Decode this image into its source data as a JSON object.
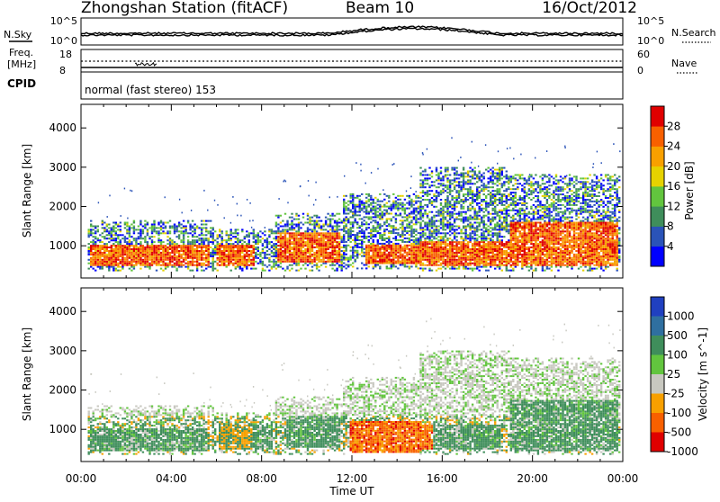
{
  "header": {
    "station": "Zhongshan Station (fitACF)",
    "beam": "Beam 10",
    "date": "16/Oct/2012"
  },
  "noise_panel": {
    "left_label": "N.Sky",
    "left_ticks": [
      "10^5",
      "10^0"
    ],
    "right_label": "N.Search",
    "right_ticks": [
      "10^5",
      "10^0"
    ]
  },
  "freq_panel": {
    "left_label_line1": "Freq.",
    "left_label_line2": "[MHz]",
    "left_ticks": [
      "18",
      "8"
    ],
    "right_label": "Nave",
    "right_ticks": [
      "60",
      "0"
    ]
  },
  "cpid": {
    "label": "CPID",
    "mode_text": "normal (fast stereo) 153"
  },
  "chart_data": [
    {
      "type": "heatmap",
      "name": "Power",
      "ylabel": "Slant Range [km]",
      "xlabel": "",
      "x_ticks": [
        "00:00",
        "04:00",
        "08:00",
        "12:00",
        "16:00",
        "20:00",
        "00:00"
      ],
      "xlim_hours": [
        0,
        24
      ],
      "y_ticks": [
        1000,
        2000,
        3000,
        4000
      ],
      "ylim": [
        180,
        4600
      ],
      "colorbar": {
        "label": "Power [dB]",
        "ticks": [
          "4",
          "8",
          "12",
          "16",
          "20",
          "24",
          "28"
        ],
        "colors": [
          "#0000ff",
          "#2a53b8",
          "#3f8e5b",
          "#62c53e",
          "#e6d200",
          "#f8a000",
          "#f86000",
          "#e00000"
        ]
      },
      "regions": [
        {
          "t0": 0.3,
          "t1": 5.8,
          "r0": 350,
          "r1": 1650,
          "core": [
            0.4,
            5.6,
            450,
            1000
          ]
        },
        {
          "t0": 5.8,
          "t1": 8.6,
          "r0": 350,
          "r1": 1400,
          "core": [
            5.9,
            7.6,
            450,
            1000
          ]
        },
        {
          "t0": 8.6,
          "t1": 11.6,
          "r0": 350,
          "r1": 1800,
          "core": [
            8.7,
            11.4,
            550,
            1300
          ]
        },
        {
          "t0": 11.6,
          "t1": 15.0,
          "r0": 400,
          "r1": 2300,
          "core": [
            12.5,
            15.0,
            500,
            1000
          ]
        },
        {
          "t0": 15.0,
          "t1": 19.0,
          "r0": 350,
          "r1": 3000,
          "core": [
            15.0,
            19.0,
            450,
            1100
          ]
        },
        {
          "t0": 19.0,
          "t1": 23.9,
          "r0": 350,
          "r1": 2800,
          "core": [
            19.0,
            23.8,
            450,
            1600
          ]
        }
      ]
    },
    {
      "type": "heatmap",
      "name": "Velocity",
      "ylabel": "Slant Range [km]",
      "xlabel": "Time UT",
      "x_ticks": [
        "00:00",
        "04:00",
        "08:00",
        "12:00",
        "16:00",
        "20:00",
        "00:00"
      ],
      "xlim_hours": [
        0,
        24
      ],
      "y_ticks": [
        1000,
        2000,
        3000,
        4000
      ],
      "ylim": [
        180,
        4600
      ],
      "colorbar": {
        "label": "Velocity [m s^-1]",
        "ticks": [
          "1000",
          "500",
          "100",
          "25",
          "-25",
          "-100",
          "-500",
          "-1000"
        ],
        "colors": [
          "#2040c0",
          "#2f6fa0",
          "#3f8e5b",
          "#62c53e",
          "#c8c8c0",
          "#f8a000",
          "#f86000",
          "#e00000"
        ]
      },
      "regions": [
        {
          "t0": 0.3,
          "t1": 5.8,
          "r0": 350,
          "r1": 1600,
          "core": [
            0.4,
            5.6,
            400,
            1000
          ]
        },
        {
          "t0": 5.8,
          "t1": 8.6,
          "r0": 350,
          "r1": 1400,
          "core": [
            6.0,
            8.4,
            450,
            1100
          ]
        },
        {
          "t0": 8.6,
          "t1": 11.6,
          "r0": 350,
          "r1": 1800,
          "core": [
            9.0,
            11.4,
            500,
            1300
          ]
        },
        {
          "t0": 11.6,
          "t1": 15.0,
          "r0": 400,
          "r1": 2300,
          "core": [
            11.8,
            15.0,
            400,
            1200
          ]
        },
        {
          "t0": 15.0,
          "t1": 19.0,
          "r0": 350,
          "r1": 3000,
          "core": [
            15.0,
            18.6,
            450,
            1100
          ]
        },
        {
          "t0": 19.0,
          "t1": 23.9,
          "r0": 350,
          "r1": 2800,
          "core": [
            19.0,
            23.8,
            400,
            1700
          ]
        }
      ]
    }
  ]
}
